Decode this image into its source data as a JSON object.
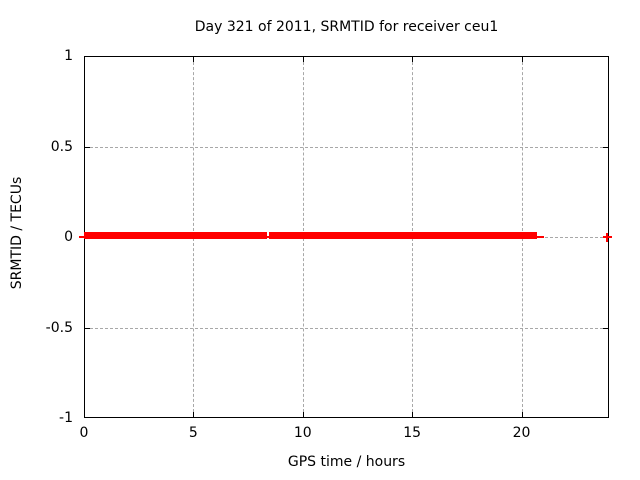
{
  "title": "Day 321 of 2011, SRMTID for receiver ceu1",
  "chart_data": {
    "type": "scatter",
    "title": "Day 321 of 2011, SRMTID for receiver ceu1",
    "xlabel": "GPS time / hours",
    "ylabel": "SRMTID / TECUs",
    "xlim": [
      0,
      24
    ],
    "ylim": [
      -1,
      1
    ],
    "x_ticks": [
      0,
      5,
      10,
      15,
      20
    ],
    "x_tick_labels": [
      "0",
      "5",
      "10",
      "15",
      "20"
    ],
    "y_ticks": [
      1,
      0.5,
      0,
      -0.5,
      -1
    ],
    "y_tick_labels": [
      "1",
      "0.5",
      "0",
      "-0.5",
      "-1"
    ],
    "grid": true,
    "grid_style": "dashed",
    "grid_color": "#a8a8a8",
    "border_color": "#000000",
    "background_color": "#ffffff",
    "legend": "none",
    "series": [
      {
        "name": "SRMTID",
        "marker": "plus",
        "color": "#ff0000",
        "segments": [
          {
            "x_start": 0.0,
            "x_end": 8.35,
            "y": 0.0
          },
          {
            "x_start": 8.45,
            "x_end": 20.7,
            "y": 0.0
          }
        ],
        "points": [
          {
            "x": 23.9,
            "y": 0.0
          }
        ]
      }
    ]
  }
}
